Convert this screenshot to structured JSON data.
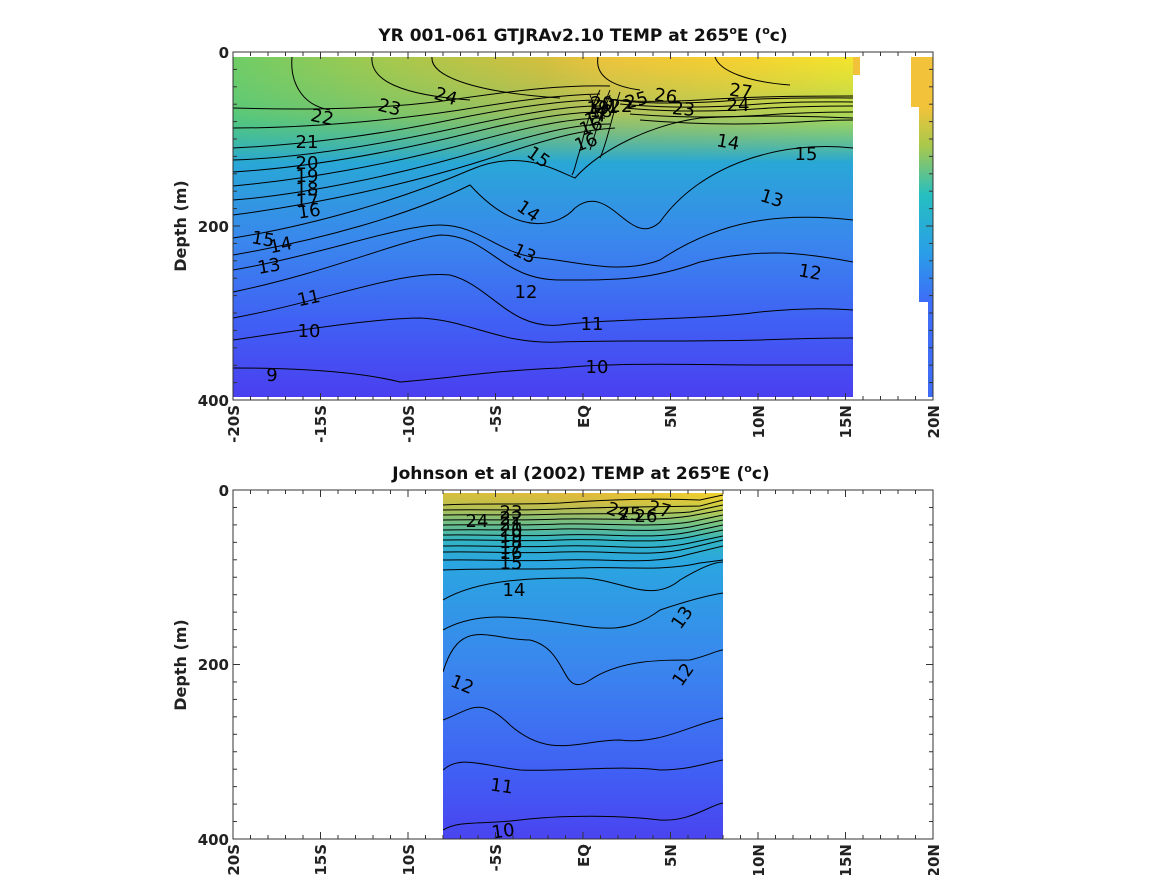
{
  "chart_data": [
    {
      "type": "heatmap",
      "variant": "filled contour section",
      "title": "YR 001-061 GTJRAv2.10 TEMP at 265",
      "title_sup": "o",
      "title_after_sup": "E (",
      "title_unit_sup": "o",
      "title_tail": "c)",
      "ylabel": "Depth (m)",
      "ylim": [
        400,
        0
      ],
      "yticks": [
        "0",
        "200",
        "400"
      ],
      "xlim": [
        -20,
        20
      ],
      "xticks": [
        "-20S",
        "-15S",
        "-10S",
        "-5S",
        "EQ",
        "5N",
        "10N",
        "15N",
        "20N"
      ],
      "colormap": [
        "#4a3ff0",
        "#3d6cf7",
        "#2a9ee8",
        "#26bfc0",
        "#5ccb7a",
        "#a8c84c",
        "#e6b93a",
        "#fccf2e",
        "#f9e52a"
      ],
      "contour_labels": [
        "22",
        "23",
        "24",
        "25",
        "26",
        "27",
        "24",
        "23",
        "21",
        "20",
        "19",
        "18",
        "17",
        "16",
        "15",
        "14",
        "13",
        "15",
        "14",
        "13",
        "16",
        "14",
        "15",
        "13",
        "12",
        "11",
        "12",
        "11",
        "10",
        "10",
        "9",
        "16",
        "17",
        "18",
        "19",
        "20",
        "22",
        "21"
      ]
    },
    {
      "type": "heatmap",
      "variant": "filled contour section",
      "title": "Johnson et al (2002) TEMP at 265",
      "title_sup": "o",
      "title_after_sup": "E (",
      "title_unit_sup": "o",
      "title_tail": "c)",
      "ylabel": "Depth (m)",
      "ylim": [
        400,
        0
      ],
      "yticks": [
        "0",
        "200",
        "400"
      ],
      "xlim": [
        -20,
        20
      ],
      "xticks": [
        "-20S",
        "-15S",
        "-10S",
        "-5S",
        "EQ",
        "5N",
        "10N",
        "15N",
        "20N"
      ],
      "data_extent_lat": [
        -8,
        8
      ],
      "colormap": [
        "#4a3ff0",
        "#3d6cf7",
        "#2a9ee8",
        "#26bfc0",
        "#5ccb7a",
        "#a8c84c",
        "#e6b93a",
        "#fccf2e",
        "#f9e52a"
      ],
      "contour_labels": [
        "24",
        "23",
        "22",
        "21",
        "20",
        "19",
        "18",
        "17",
        "16",
        "15",
        "14",
        "13",
        "12",
        "12",
        "11",
        "10",
        "24",
        "25",
        "26",
        "27"
      ]
    }
  ]
}
